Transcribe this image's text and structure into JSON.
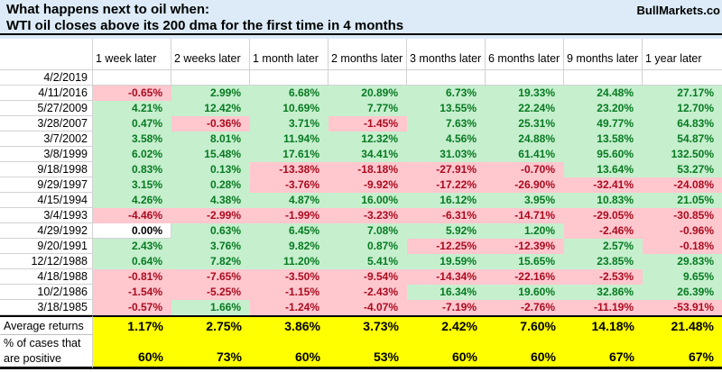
{
  "header": {
    "title_line1": "What happens next to oil when:",
    "title_line2": "WTI oil closes above its 200 dma for the first time in 4 months",
    "brand": "BullMarkets.co"
  },
  "chart_data": {
    "type": "table",
    "title": "What happens next to oil when: WTI oil closes above its 200 dma for the first time in 4 months",
    "corner_header": "",
    "columns": [
      "1 week later",
      "2 weeks later",
      "1 month later",
      "2 months later",
      "3 months later",
      "6 months later",
      "9 months later",
      "1 year later"
    ],
    "rows": [
      {
        "date": "4/2/2019",
        "values": [
          "",
          "",
          "",
          "",
          "",
          "",
          "",
          ""
        ]
      },
      {
        "date": "4/11/2016",
        "values": [
          "-0.65%",
          "2.99%",
          "6.68%",
          "20.89%",
          "6.73%",
          "19.33%",
          "24.48%",
          "27.17%"
        ]
      },
      {
        "date": "5/27/2009",
        "values": [
          "4.21%",
          "12.42%",
          "10.69%",
          "7.77%",
          "13.55%",
          "22.24%",
          "23.20%",
          "12.70%"
        ]
      },
      {
        "date": "3/28/2007",
        "values": [
          "0.47%",
          "-0.36%",
          "3.71%",
          "-1.45%",
          "7.63%",
          "25.31%",
          "49.77%",
          "64.83%"
        ]
      },
      {
        "date": "3/7/2002",
        "values": [
          "3.58%",
          "8.01%",
          "11.94%",
          "12.32%",
          "4.56%",
          "24.88%",
          "13.58%",
          "54.87%"
        ]
      },
      {
        "date": "3/8/1999",
        "values": [
          "6.02%",
          "15.48%",
          "17.61%",
          "34.41%",
          "31.03%",
          "61.41%",
          "95.60%",
          "132.50%"
        ]
      },
      {
        "date": "9/18/1998",
        "values": [
          "0.83%",
          "0.13%",
          "-13.38%",
          "-18.18%",
          "-27.91%",
          "-0.70%",
          "13.64%",
          "53.27%"
        ]
      },
      {
        "date": "9/29/1997",
        "values": [
          "3.15%",
          "0.28%",
          "-3.76%",
          "-9.92%",
          "-17.22%",
          "-26.90%",
          "-32.41%",
          "-24.08%"
        ]
      },
      {
        "date": "4/15/1994",
        "values": [
          "4.26%",
          "4.38%",
          "4.87%",
          "16.00%",
          "16.12%",
          "3.95%",
          "10.83%",
          "21.05%"
        ]
      },
      {
        "date": "3/4/1993",
        "values": [
          "-4.46%",
          "-2.99%",
          "-1.99%",
          "-3.23%",
          "-6.31%",
          "-14.71%",
          "-29.05%",
          "-30.85%"
        ]
      },
      {
        "date": "4/29/1992",
        "values": [
          "0.00%",
          "0.63%",
          "6.45%",
          "7.08%",
          "5.92%",
          "1.20%",
          "-2.46%",
          "-0.96%"
        ]
      },
      {
        "date": "9/20/1991",
        "values": [
          "2.43%",
          "3.76%",
          "9.82%",
          "0.87%",
          "-12.25%",
          "-12.39%",
          "2.57%",
          "-0.18%"
        ]
      },
      {
        "date": "12/12/1988",
        "values": [
          "0.64%",
          "7.82%",
          "11.20%",
          "5.41%",
          "19.59%",
          "15.65%",
          "23.85%",
          "29.83%"
        ]
      },
      {
        "date": "4/18/1988",
        "values": [
          "-0.81%",
          "-7.65%",
          "-3.50%",
          "-9.54%",
          "-14.34%",
          "-22.16%",
          "-2.53%",
          "9.65%"
        ]
      },
      {
        "date": "10/2/1986",
        "values": [
          "-1.54%",
          "-5.25%",
          "-1.15%",
          "-2.43%",
          "16.34%",
          "19.60%",
          "32.86%",
          "26.39%"
        ]
      },
      {
        "date": "3/18/1985",
        "values": [
          "-0.57%",
          "1.66%",
          "-1.24%",
          "-4.07%",
          "-7.19%",
          "-2.76%",
          "-11.19%",
          "-53.91%"
        ]
      }
    ],
    "summary": {
      "avg_label": "Average returns",
      "avg_values": [
        "1.17%",
        "2.75%",
        "3.86%",
        "3.73%",
        "2.42%",
        "7.60%",
        "14.18%",
        "21.48%"
      ],
      "pct_label_line1": "% of cases that",
      "pct_label_line2": "are positive",
      "pct_values": [
        "60%",
        "73%",
        "60%",
        "53%",
        "60%",
        "60%",
        "67%",
        "67%"
      ]
    }
  },
  "colors": {
    "header_bg": "#DCEBF7",
    "positive_bg": "#C6EFCE",
    "positive_text": "#077A21",
    "negative_bg": "#FFC7CE",
    "negative_text": "#AA0B1F",
    "summary_bg": "#FFFF00",
    "gridline": "#D2D2D2",
    "border_dark": "#000000"
  }
}
